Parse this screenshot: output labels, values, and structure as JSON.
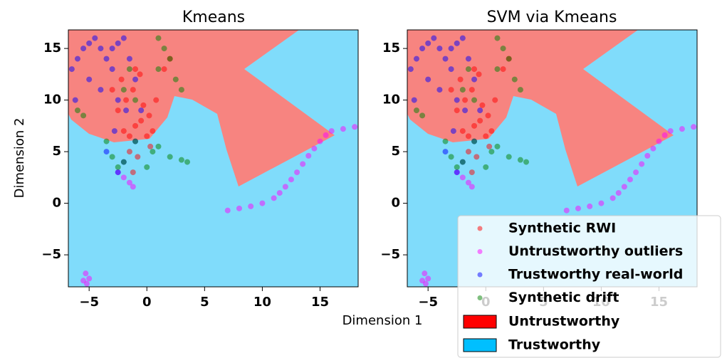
{
  "chart_data": [
    {
      "type": "scatter",
      "title": "Kmeans",
      "xlabel": "Dimension 1",
      "ylabel": "Dimension 2",
      "xlim": [
        -6.8,
        18.3
      ],
      "ylim": [
        -8.1,
        16.8
      ],
      "xticks": [
        {
          "value": -5,
          "label": "−5"
        },
        0,
        5,
        10,
        15
      ],
      "yticks": [
        {
          "value": -5,
          "label": "−5"
        },
        0,
        5,
        10,
        15
      ],
      "series": [
        {
          "name": "Synthetic RWI",
          "color": "#ff0000",
          "x": [
            -2,
            -1.5,
            -1,
            -0.5,
            0,
            0.5,
            -2.5,
            -1.8,
            -1.2,
            -0.3,
            0.2,
            -2.2,
            -1,
            -0.6,
            0.8,
            1.5,
            -3,
            -1.5,
            -0.8,
            0.3,
            2,
            -1.2
          ],
          "values": [
            7,
            6.5,
            7.5,
            8,
            6.5,
            7,
            9,
            10,
            11,
            9.5,
            8.5,
            12,
            13,
            12.5,
            10,
            13,
            11,
            5,
            4.5,
            5.5,
            14,
            3
          ]
        },
        {
          "name": "Untrustworthy outliers",
          "color": "#ff00ff",
          "x": [
            7,
            8,
            9,
            10,
            11,
            11.5,
            12,
            12.5,
            13,
            13.5,
            14,
            14.5,
            15,
            15.5,
            16,
            17,
            18,
            -5.5,
            -5.2,
            -5,
            -5.3,
            -2,
            -1.5,
            -1.2,
            -2.5
          ],
          "values": [
            -0.7,
            -0.5,
            -0.3,
            0,
            0.5,
            1,
            1.6,
            2.3,
            3,
            3.8,
            4.6,
            5.3,
            6,
            6.6,
            7,
            7.2,
            7.4,
            -7.5,
            -7.8,
            -7.3,
            -6.8,
            2.5,
            2,
            1.6,
            3
          ]
        },
        {
          "name": "Trustworthy real-world",
          "color": "#0000ff",
          "x": [
            -6.5,
            -6,
            -5.5,
            -5,
            -4.5,
            -4,
            -3.5,
            -3,
            -2.5,
            -2,
            -1.5,
            -1,
            -5,
            -4,
            -3,
            -2.5,
            -1.8,
            -2.8,
            -3.5,
            -2,
            -1,
            -0.5,
            -6.2,
            -2.5
          ],
          "values": [
            13,
            14,
            15,
            15.5,
            16,
            15,
            14,
            15,
            15.5,
            16,
            14,
            12,
            12,
            11,
            13,
            10,
            9,
            7,
            5,
            4,
            6,
            9,
            10,
            3
          ]
        },
        {
          "name": "Synthetic drift",
          "color": "#008000",
          "x": [
            -6,
            -5.5,
            -3.5,
            -2,
            -1,
            1,
            1.5,
            2,
            2.5,
            3,
            1,
            2,
            3,
            3.5,
            0.5,
            -1,
            -3,
            -2.5,
            -2,
            0,
            1,
            -1.5
          ],
          "values": [
            9,
            8.5,
            6,
            11,
            10,
            16,
            15,
            14,
            12,
            11,
            13,
            4.5,
            4.2,
            4,
            5,
            6,
            4.5,
            3.5,
            4,
            3.5,
            5.5,
            13
          ]
        }
      ]
    },
    {
      "type": "scatter",
      "title": "SVM via Kmeans",
      "xlim": [
        -6.8,
        18.3
      ],
      "ylim": [
        -8.1,
        16.8
      ],
      "xticks": [
        {
          "value": -5,
          "label": "−5"
        },
        0,
        5,
        10,
        15
      ],
      "yticks": [
        {
          "value": -5,
          "label": "−5"
        },
        0,
        5,
        10,
        15
      ],
      "series": [
        {
          "name": "Synthetic RWI",
          "color": "#ff0000",
          "x": [
            -2,
            -1.5,
            -1,
            -0.5,
            0,
            0.5,
            -2.5,
            -1.8,
            -1.2,
            -0.3,
            0.2,
            -2.2,
            -1,
            -0.6,
            0.8,
            1.5,
            -3,
            -1.5,
            -0.8,
            0.3,
            2,
            -1.2
          ],
          "values": [
            7,
            6.5,
            7.5,
            8,
            6.5,
            7,
            9,
            10,
            11,
            9.5,
            8.5,
            12,
            13,
            12.5,
            10,
            13,
            11,
            5,
            4.5,
            5.5,
            14,
            3
          ]
        },
        {
          "name": "Untrustworthy outliers",
          "color": "#ff00ff",
          "x": [
            7,
            8,
            9,
            10,
            11,
            11.5,
            12,
            12.5,
            13,
            13.5,
            14,
            14.5,
            15,
            15.5,
            16,
            17,
            18,
            -5.5,
            -5.2,
            -5,
            -5.3,
            -2,
            -1.5,
            -1.2,
            -2.5
          ],
          "values": [
            -0.7,
            -0.5,
            -0.3,
            0,
            0.5,
            1,
            1.6,
            2.3,
            3,
            3.8,
            4.6,
            5.3,
            6,
            6.6,
            7,
            7.2,
            7.4,
            -7.5,
            -7.8,
            -7.3,
            -6.8,
            2.5,
            2,
            1.6,
            3
          ]
        },
        {
          "name": "Trustworthy real-world",
          "color": "#0000ff",
          "x": [
            -6.5,
            -6,
            -5.5,
            -5,
            -4.5,
            -4,
            -3.5,
            -3,
            -2.5,
            -2,
            -1.5,
            -1,
            -5,
            -4,
            -3,
            -2.5,
            -1.8,
            -2.8,
            -3.5,
            -2,
            -1,
            -0.5,
            -6.2,
            -2.5
          ],
          "values": [
            13,
            14,
            15,
            15.5,
            16,
            15,
            14,
            15,
            15.5,
            16,
            14,
            12,
            12,
            11,
            13,
            10,
            9,
            7,
            5,
            4,
            6,
            9,
            10,
            3
          ]
        },
        {
          "name": "Synthetic drift",
          "color": "#008000",
          "x": [
            -6,
            -5.5,
            -3.5,
            -2,
            -1,
            1,
            1.5,
            2,
            2.5,
            3,
            1,
            2,
            3,
            3.5,
            0.5,
            -1,
            -3,
            -2.5,
            -2,
            0,
            1,
            -1.5
          ],
          "values": [
            9,
            8.5,
            6,
            11,
            10,
            16,
            15,
            14,
            12,
            11,
            13,
            4.5,
            4.2,
            4,
            5,
            6,
            4.5,
            3.5,
            4,
            3.5,
            5.5,
            13
          ]
        }
      ],
      "regions": [
        {
          "name": "Untrustworthy",
          "color": "#ff0000"
        },
        {
          "name": "Trustworthy",
          "color": "#00bfff"
        }
      ],
      "legend": "lower right"
    }
  ]
}
